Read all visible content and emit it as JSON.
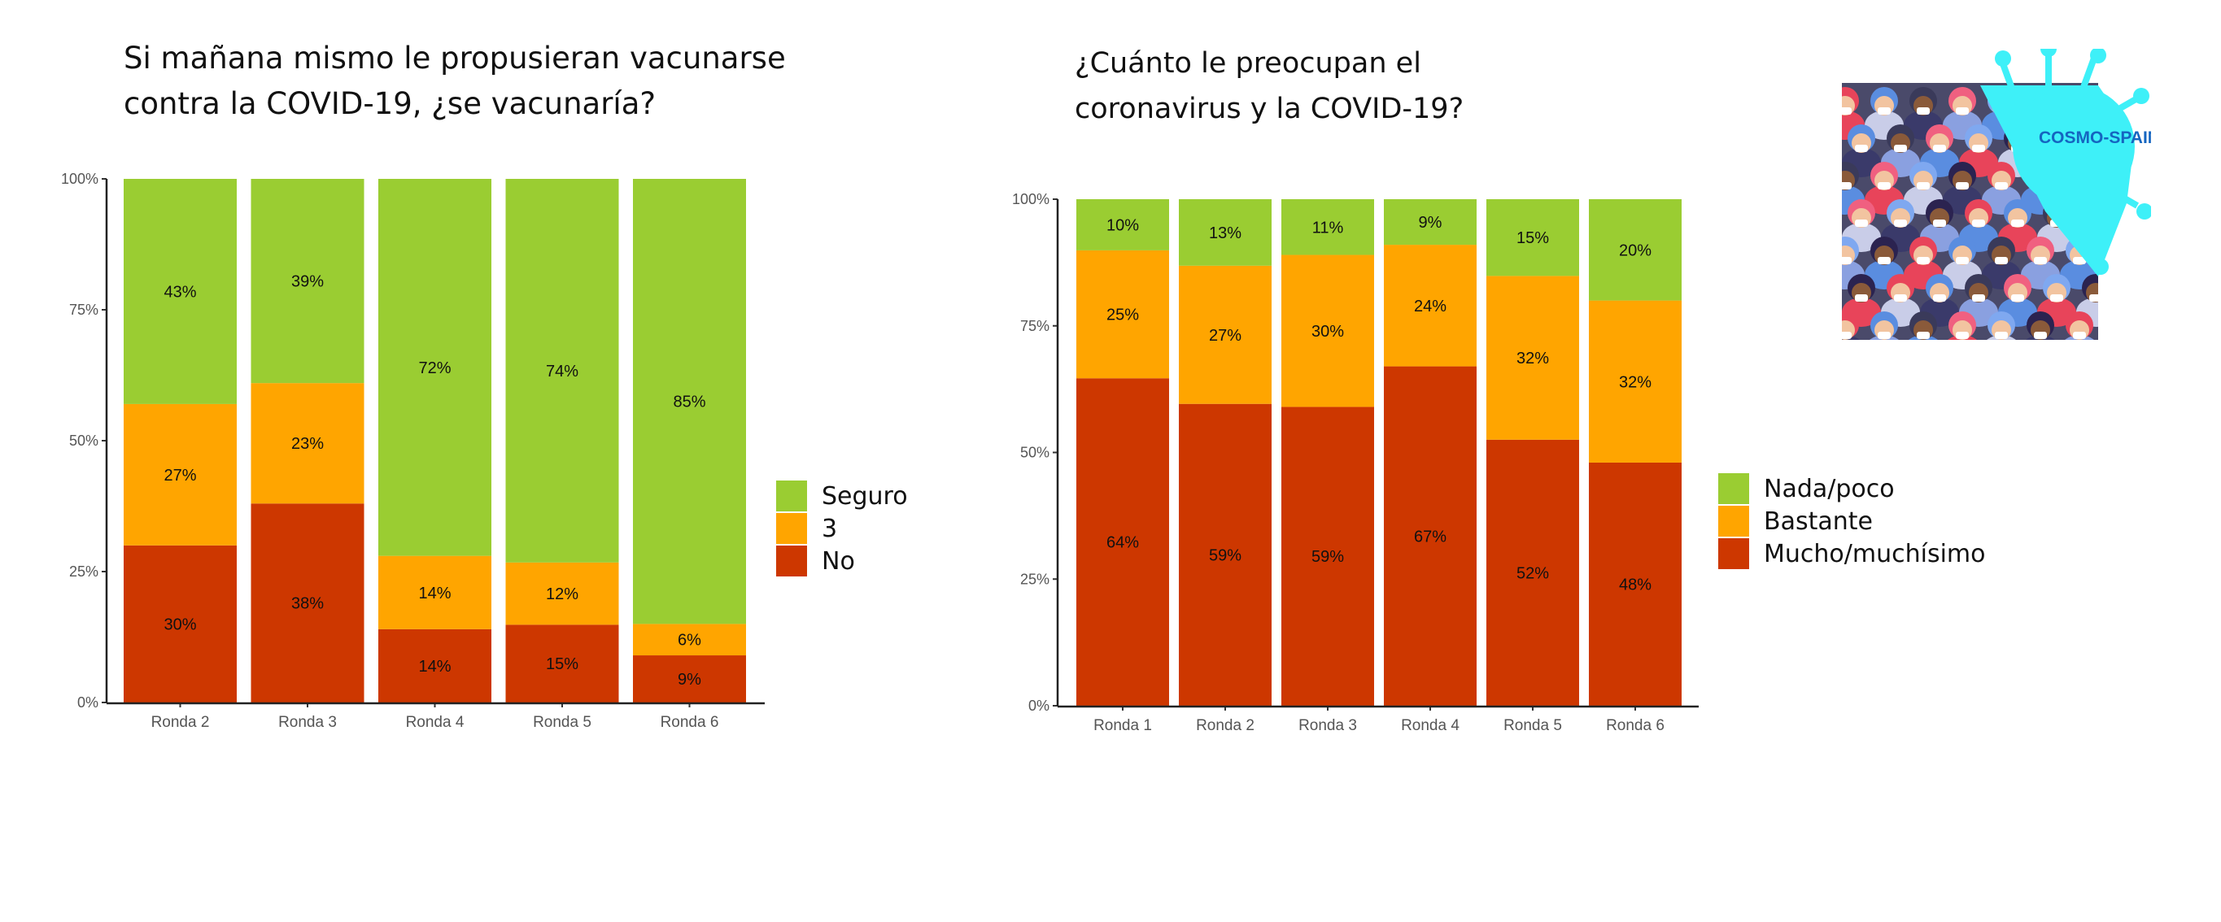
{
  "colors": {
    "green": "#9ACD32",
    "orange": "#FFA500",
    "red": "#CD3700"
  },
  "logo": {
    "text": "COSMO-SPAIN"
  },
  "chart_data": [
    {
      "type": "bar",
      "stacked": true,
      "title": "Si mañana mismo le propusieran vacunarse\ncontra la COVID-19, ¿se vacunaría?",
      "categories": [
        "Ronda 2",
        "Ronda 3",
        "Ronda 4",
        "Ronda 5",
        "Ronda 6"
      ],
      "yticks": [
        "0%",
        "25%",
        "50%",
        "75%",
        "100%"
      ],
      "ylim": [
        0,
        100
      ],
      "legend_position": "right",
      "series": [
        {
          "name": "No",
          "color": "#CD3700",
          "values": [
            30,
            38,
            14,
            15,
            9
          ]
        },
        {
          "name": "3",
          "color": "#FFA500",
          "values": [
            27,
            23,
            14,
            12,
            6
          ]
        },
        {
          "name": "Seguro",
          "color": "#9ACD32",
          "values": [
            43,
            39,
            72,
            74,
            85
          ]
        }
      ],
      "legend": [
        "Seguro",
        "3",
        "No"
      ]
    },
    {
      "type": "bar",
      "stacked": true,
      "title": "¿Cuánto le preocupan el\ncoronavirus y la COVID-19?",
      "categories": [
        "Ronda 1",
        "Ronda 2",
        "Ronda 3",
        "Ronda 4",
        "Ronda 5",
        "Ronda 6"
      ],
      "yticks": [
        "0%",
        "25%",
        "50%",
        "75%",
        "100%"
      ],
      "ylim": [
        0,
        100
      ],
      "legend_position": "right",
      "series": [
        {
          "name": "Mucho/muchísimo",
          "color": "#CD3700",
          "values": [
            64,
            59,
            59,
            67,
            52,
            48
          ]
        },
        {
          "name": "Bastante",
          "color": "#FFA500",
          "values": [
            25,
            27,
            30,
            24,
            32,
            32
          ]
        },
        {
          "name": "Nada/poco",
          "color": "#9ACD32",
          "values": [
            10,
            13,
            11,
            9,
            15,
            20
          ]
        }
      ],
      "legend": [
        "Nada/poco",
        "Bastante",
        "Mucho/muchísimo"
      ]
    }
  ]
}
